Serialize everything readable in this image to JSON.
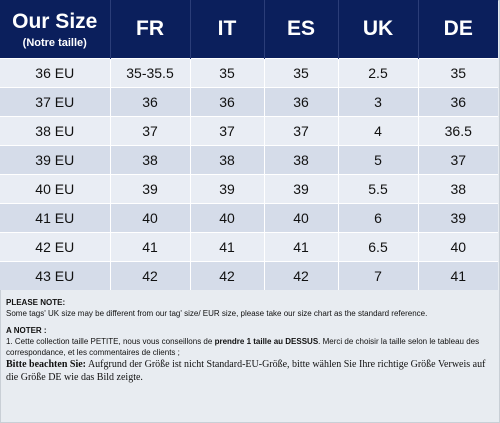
{
  "header": {
    "our_size": "Our Size",
    "our_size_sub": "(Notre taille)",
    "columns": [
      "FR",
      "IT",
      "ES",
      "UK",
      "DE"
    ]
  },
  "rows": [
    [
      "36 EU",
      "35-35.5",
      "35",
      "35",
      "2.5",
      "35"
    ],
    [
      "37 EU",
      "36",
      "36",
      "36",
      "3",
      "36"
    ],
    [
      "38 EU",
      "37",
      "37",
      "37",
      "4",
      "36.5"
    ],
    [
      "39 EU",
      "38",
      "38",
      "38",
      "5",
      "37"
    ],
    [
      "40 EU",
      "39",
      "39",
      "39",
      "5.5",
      "38"
    ],
    [
      "41 EU",
      "40",
      "40",
      "40",
      "6",
      "39"
    ],
    [
      "42 EU",
      "41",
      "41",
      "41",
      "6.5",
      "40"
    ],
    [
      "43 EU",
      "42",
      "42",
      "42",
      "7",
      "41"
    ]
  ],
  "notes": {
    "please_note_title": "PLEASE NOTE:",
    "please_note_text": "Some tags' UK size  may be different from our tag' size/ EUR size, please take our size chart as the standard reference.",
    "a_noter_title": "A NOTER :",
    "a_noter_before": "1. Cette collection taille PETITE, nous vous conseillons de ",
    "a_noter_bold": "prendre 1 taille au DESSUS",
    "a_noter_after": ". Merci de choisir la taille selon le tableau des correspondance, et  les commentaires de clients ;",
    "de_bold": "Bitte beachten Sie:",
    "de_text": " Aufgrund der Größe ist nicht Standard-EU-Größe, bitte wählen Sie Ihre richtige Größe Verweis auf die Größe DE wie das Bild zeigte."
  }
}
